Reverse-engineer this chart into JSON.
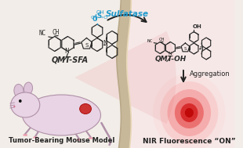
{
  "bg_left": "#f2ede8",
  "bg_right": "#f7e8e8",
  "membrane_fill": "#c8b89a",
  "membrane_edge1": "#b8a888",
  "membrane_edge2": "#d8c8aa",
  "sulfatase_color": "#2299cc",
  "col": "#2a2a2a",
  "mouse_body": "#e8d4e4",
  "mouse_ear": "#ddc4d8",
  "mouse_outline": "#b090a8",
  "tumor_color": "#cc3333",
  "so3h_color": "#2299cc",
  "glow1": "#ff2222",
  "glow2": "#ff6666",
  "glow3": "#ffaaaa",
  "qmt_sfa_label": "QMT-SFA",
  "qmt_oh_label": "QMT-OH",
  "sulfatase_label": "Sulfatase",
  "aggregation_label": "Aggregation",
  "mouse_label": "Tumor-Bearing Mouse Model",
  "nir_label": "NIR Fluorescence “ON”"
}
